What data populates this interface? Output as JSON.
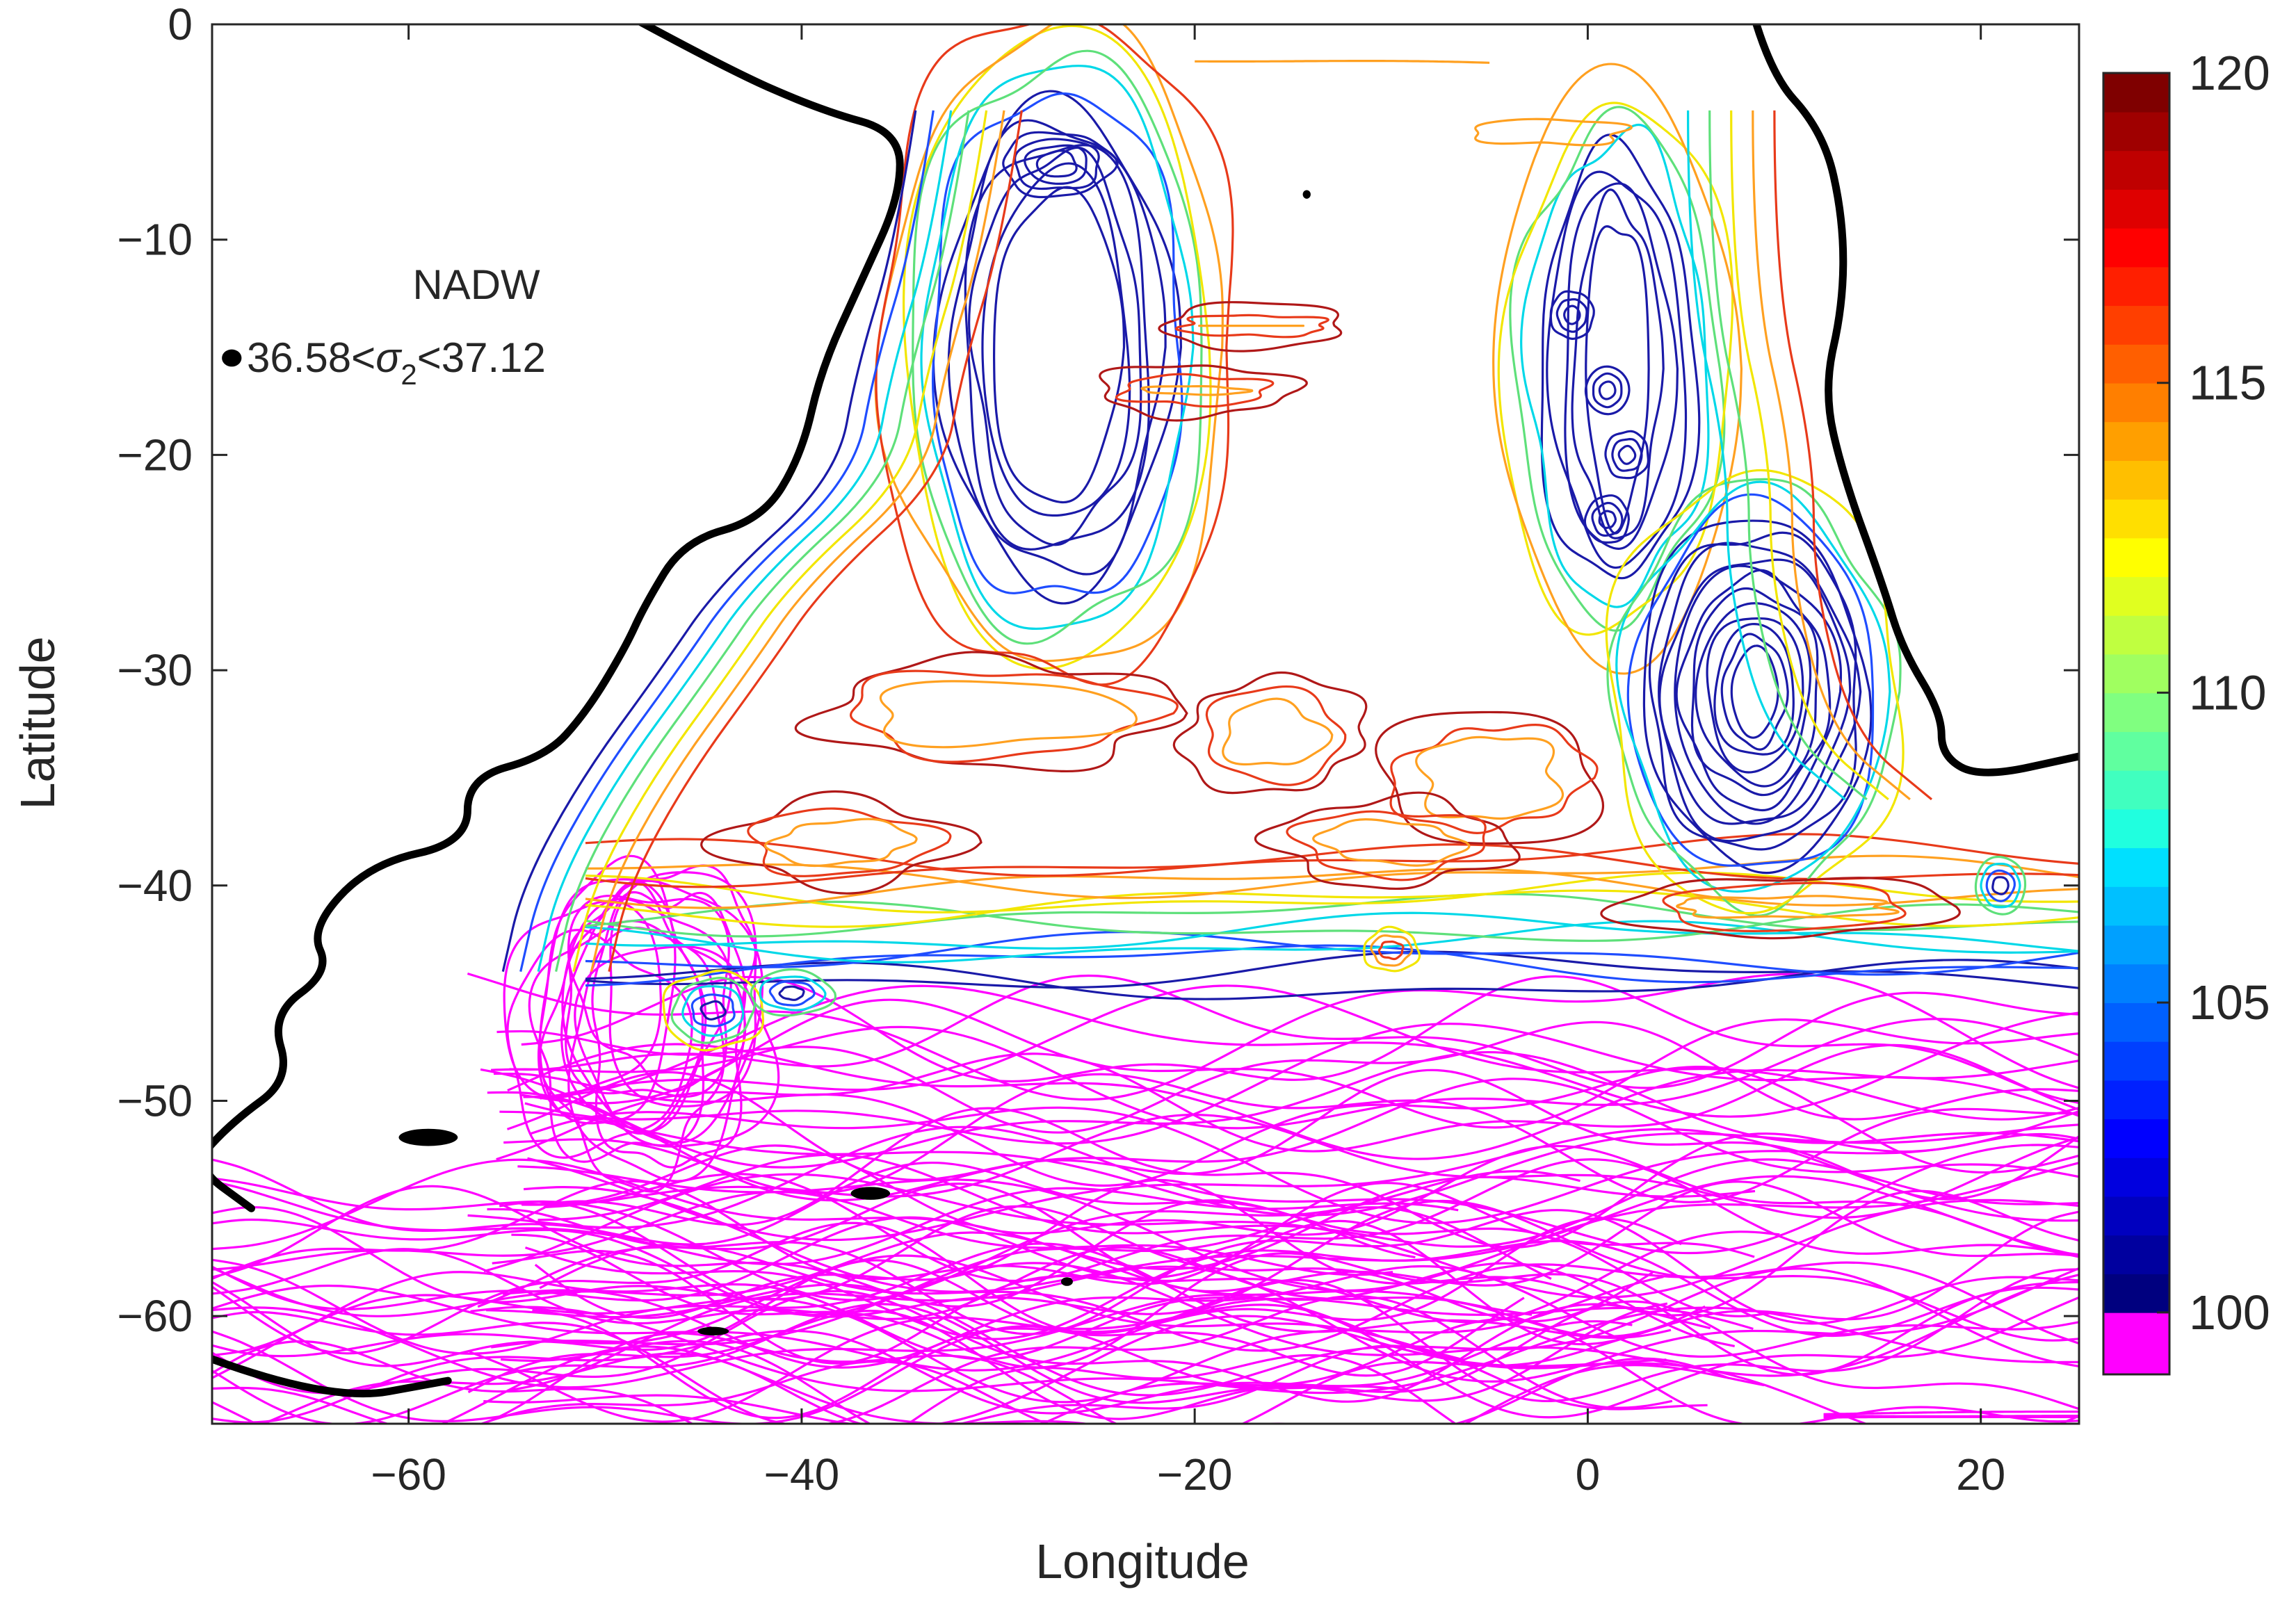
{
  "chart_data": {
    "type": "contour",
    "title": "",
    "xlabel": "Longitude",
    "ylabel": "Latitude",
    "xlim": [
      -70,
      25
    ],
    "ylim": [
      -65,
      0
    ],
    "xticks": [
      -60,
      -40,
      -20,
      0,
      20
    ],
    "yticks": [
      0,
      -10,
      -20,
      -30,
      -40,
      -50,
      -60
    ],
    "xtick_labels": [
      "−60",
      "−40",
      "−20",
      "0",
      "20"
    ],
    "ytick_labels": [
      "0",
      "−10",
      "−20",
      "−30",
      "−40",
      "−50",
      "−60"
    ],
    "annotation": {
      "line1": "NADW",
      "line2_prefix": "36.58<",
      "line2_symbol": "σ",
      "line2_subscript": "2",
      "line2_suffix": "<37.12"
    },
    "colorbar": {
      "min": 99,
      "max": 120,
      "ticks": [
        100,
        105,
        110,
        115,
        120
      ],
      "tick_labels": [
        "100",
        "105",
        "110",
        "115",
        "120"
      ],
      "bottom_color": "#ff00ff",
      "colors": [
        "#00007f",
        "#00009f",
        "#0000bf",
        "#0000df",
        "#0000ff",
        "#0020ff",
        "#0040ff",
        "#0060ff",
        "#0080ff",
        "#00a0ff",
        "#00c0ff",
        "#00e0ff",
        "#20ffdf",
        "#40ffbf",
        "#60ff9f",
        "#80ff80",
        "#a0ff60",
        "#c0ff40",
        "#e0ff20",
        "#ffff00",
        "#ffdf00",
        "#ffbf00",
        "#ff9f00",
        "#ff7f00",
        "#ff5f00",
        "#ff3f00",
        "#ff1f00",
        "#ff0000",
        "#df0000",
        "#bf0000",
        "#9f0000",
        "#7f0000"
      ]
    },
    "coastline_color": "#000000",
    "contour_colors": {
      "magenta": "#ff00ff",
      "dark_blue": "#1a1aa8",
      "blue": "#1f4dff",
      "cyan": "#00d8e8",
      "green": "#5ee07a",
      "yellow": "#f2e600",
      "orange": "#ffa020",
      "red": "#e83a1a",
      "dark_red": "#b01818"
    }
  }
}
